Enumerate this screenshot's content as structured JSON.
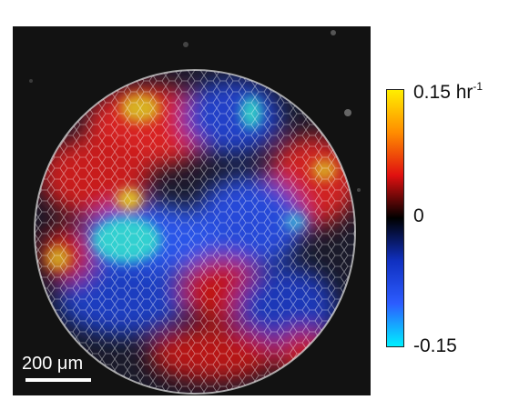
{
  "scale_bar": {
    "label": "200 μm"
  },
  "colorbar": {
    "max_value": "0.15",
    "max_unit": "hr",
    "max_exponent": "-1",
    "mid_label": "0",
    "min_label": "-0.15",
    "colors": [
      "#ffee00",
      "#ff8c00",
      "#e01010",
      "#000000",
      "#1030c0",
      "#2c5cff",
      "#00f0ff"
    ]
  }
}
